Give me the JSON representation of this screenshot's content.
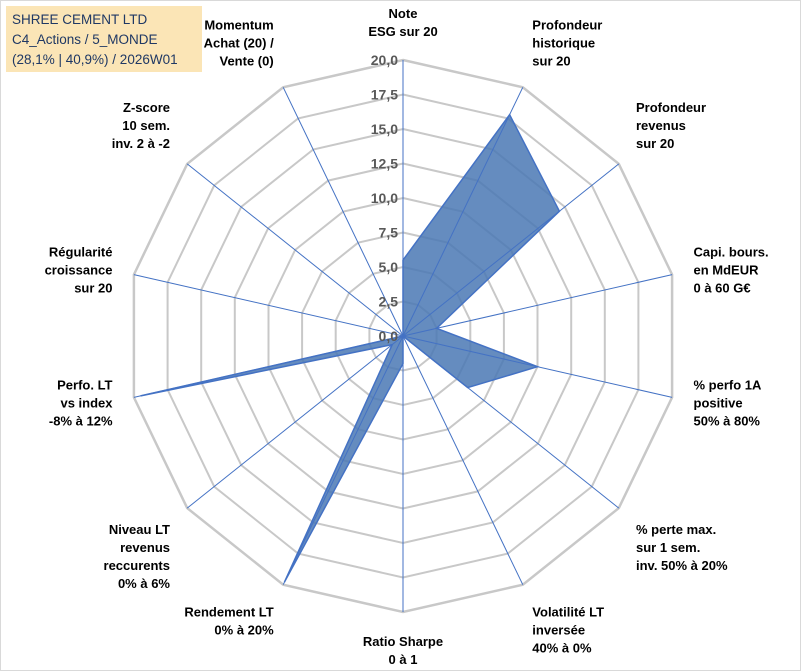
{
  "header": {
    "line1": "SHREE CEMENT LTD",
    "line2": "C4_Actions / 5_MONDE",
    "line3": "(28,1% | 40,9%) / 2026W01"
  },
  "chart_data": {
    "type": "radar",
    "title": "SHREE CEMENT LTD",
    "rmax": 20,
    "rticks": [
      "0,0",
      "2,5",
      "5,0",
      "7,5",
      "10,0",
      "12,5",
      "15,0",
      "17,5",
      "20,0"
    ],
    "rtick_values": [
      0,
      2.5,
      5,
      7.5,
      10,
      12.5,
      15,
      17.5,
      20
    ],
    "categories": [
      [
        "Note",
        "ESG sur 20"
      ],
      [
        "Profondeur",
        "historique",
        "sur 20"
      ],
      [
        "Profondeur",
        "revenus",
        "sur 20"
      ],
      [
        "Capi. bours.",
        "en MdEUR",
        "0 à 60 G€"
      ],
      [
        "% perfo 1A",
        "positive",
        "50% à 80%"
      ],
      [
        "% perte max.",
        "sur 1 sem.",
        "inv. 50% à 20%"
      ],
      [
        "Volatilité LT",
        "inversée",
        "40% à 0%"
      ],
      [
        "Ratio Sharpe",
        "0 à 1"
      ],
      [
        "Rendement LT",
        "0% à 20%"
      ],
      [
        "Niveau LT",
        "revenus",
        "reccurents",
        "0% à 6%"
      ],
      [
        "Perfo. LT",
        "vs index",
        "-8% à 12%"
      ],
      [
        "Régularité",
        "croissance",
        "sur 20"
      ],
      [
        "Z-score",
        "10 sem.",
        "inv. 2 à -2"
      ],
      [
        "Momentum",
        "Achat (20) /",
        "Vente (0)"
      ]
    ],
    "series": [
      {
        "name": "SHREE CEMENT LTD",
        "values": [
          5.5,
          17.8,
          14.5,
          2.5,
          10.0,
          6.0,
          0.0,
          2.0,
          19.8,
          1.0,
          19.5,
          0.0,
          0.0,
          0.0
        ]
      }
    ],
    "colors": {
      "fill": "#4a78b4",
      "stroke": "#4472c4",
      "grid": "#c8c8c8",
      "spoke": "#4472c4"
    }
  }
}
